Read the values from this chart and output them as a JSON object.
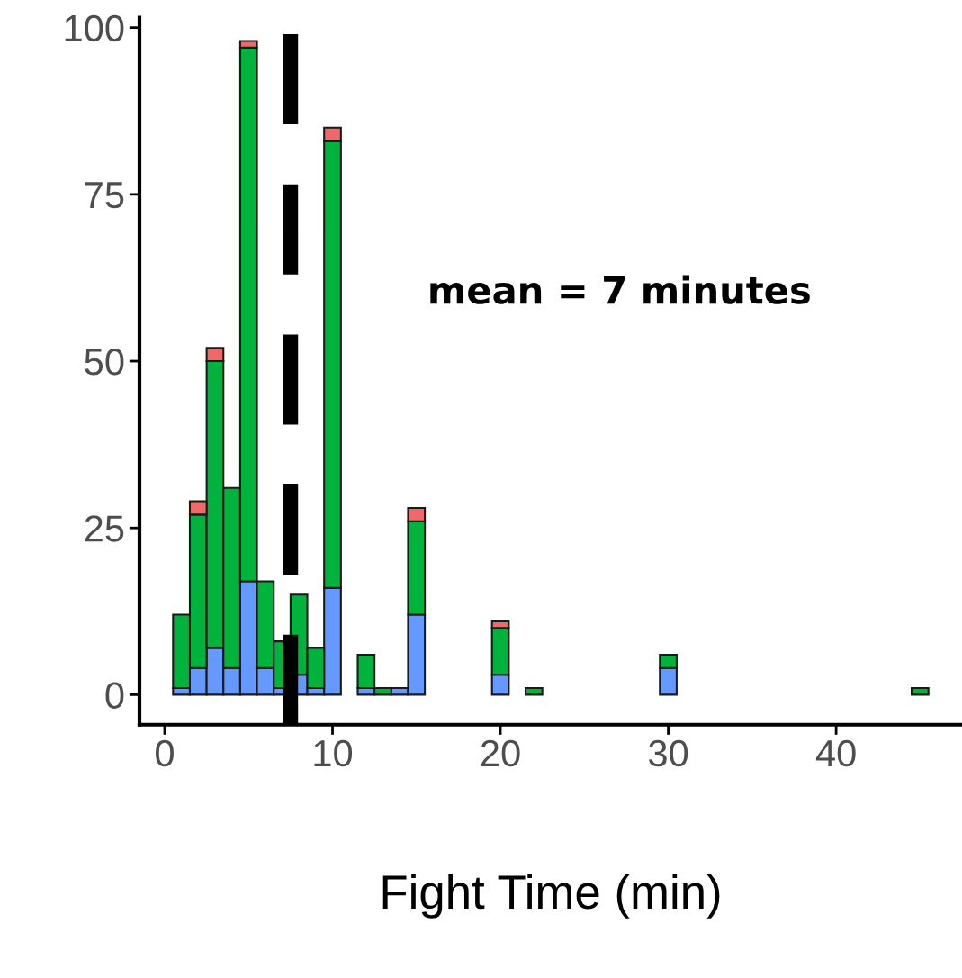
{
  "chart_data": {
    "type": "bar",
    "stacked": true,
    "xlabel": "Fight Time (min)",
    "x": [
      1,
      2,
      3,
      4,
      5,
      6,
      7,
      8,
      9,
      10,
      12,
      13,
      14,
      15,
      20,
      22,
      30,
      45
    ],
    "series": [
      {
        "color": "#6699ff",
        "values": [
          1,
          4,
          7,
          4,
          17,
          4,
          1,
          3,
          1,
          16,
          1,
          0,
          1,
          12,
          3,
          0,
          4,
          0
        ]
      },
      {
        "color": "#00b33c",
        "values": [
          11,
          23,
          43,
          27,
          80,
          13,
          7,
          12,
          6,
          67,
          5,
          1,
          0,
          14,
          7,
          1,
          2,
          1
        ]
      },
      {
        "color": "#f06868",
        "values": [
          0,
          2,
          2,
          0,
          1,
          0,
          0,
          0,
          0,
          2,
          0,
          0,
          0,
          2,
          1,
          0,
          0,
          0
        ]
      }
    ],
    "xlim": [
      -1.5,
      47.5
    ],
    "xticks": [
      0,
      10,
      20,
      30,
      40
    ],
    "ylim": [
      -4.5,
      101.5
    ],
    "yticks": [
      0,
      25,
      50,
      75,
      100
    ],
    "ref_lines": [
      {
        "axis": "x",
        "value": 7.5,
        "color": "#000000",
        "line_style": "dashed"
      }
    ],
    "annotations": [
      "mean = 7 minutes"
    ],
    "grid": false,
    "legend": false
  }
}
